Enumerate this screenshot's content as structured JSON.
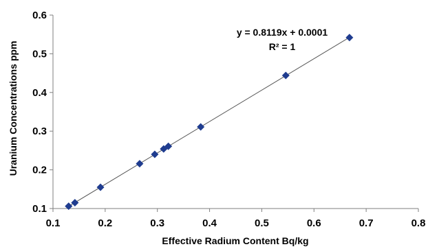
{
  "chart_data": {
    "type": "scatter",
    "xlabel": "Effective Radium Content Bq/kg",
    "ylabel": "Uranium Concentrations ppm",
    "xlim": [
      0.1,
      0.8
    ],
    "ylim": [
      0.1,
      0.6
    ],
    "xticks": [
      "0.1",
      "0.2",
      "0.3",
      "0.4",
      "0.5",
      "0.6",
      "0.7",
      "0.8"
    ],
    "yticks": [
      "0.1",
      "0.2",
      "0.3",
      "0.4",
      "0.5",
      "0.6"
    ],
    "grid": false,
    "legend": "none",
    "marker_color": "#1f3c8f",
    "line_color": "#555555",
    "points": [
      {
        "x": 0.13,
        "y": 0.106
      },
      {
        "x": 0.142,
        "y": 0.115
      },
      {
        "x": 0.191,
        "y": 0.155
      },
      {
        "x": 0.266,
        "y": 0.216
      },
      {
        "x": 0.295,
        "y": 0.24
      },
      {
        "x": 0.312,
        "y": 0.254
      },
      {
        "x": 0.321,
        "y": 0.261
      },
      {
        "x": 0.383,
        "y": 0.311
      },
      {
        "x": 0.546,
        "y": 0.444
      },
      {
        "x": 0.668,
        "y": 0.542
      }
    ],
    "trendline": {
      "slope": 0.8119,
      "intercept": 0.0001,
      "equation": "y = 0.8119x + 0.0001",
      "r_squared": "R² = 1"
    }
  }
}
